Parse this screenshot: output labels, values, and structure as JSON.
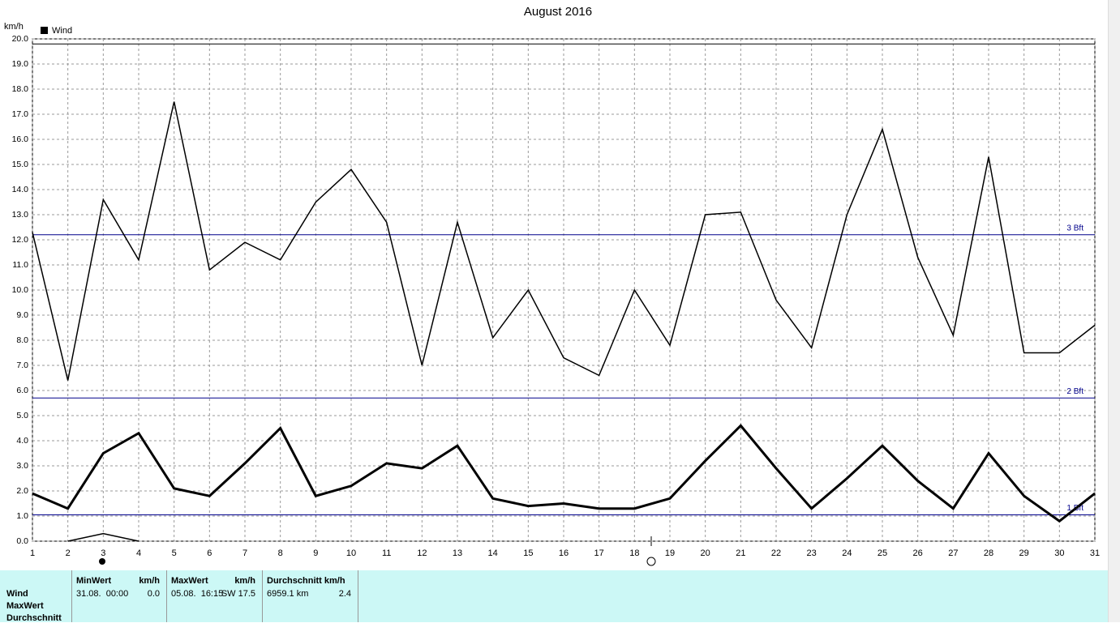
{
  "chart_data": {
    "type": "line",
    "title": "August 2016",
    "y_label": "km/h",
    "x": [
      1,
      2,
      3,
      4,
      5,
      6,
      7,
      8,
      9,
      10,
      11,
      12,
      13,
      14,
      15,
      16,
      17,
      18,
      19,
      20,
      21,
      22,
      23,
      24,
      25,
      26,
      27,
      28,
      29,
      30,
      31
    ],
    "series": [
      {
        "name": "Wind",
        "color": "#000000",
        "width": 1.5,
        "values": [
          12.3,
          6.4,
          13.6,
          11.2,
          17.5,
          10.8,
          11.9,
          11.2,
          13.5,
          14.8,
          12.7,
          7.0,
          12.7,
          8.1,
          10.0,
          7.3,
          6.6,
          10.0,
          7.8,
          13.0,
          13.1,
          9.6,
          7.7,
          13.0,
          16.4,
          11.3,
          8.2,
          15.3,
          7.5,
          7.5,
          8.6
        ]
      },
      {
        "color": "#000000",
        "width": 3,
        "values": [
          1.9,
          1.3,
          3.5,
          4.3,
          2.1,
          1.8,
          3.1,
          4.5,
          1.8,
          2.2,
          3.1,
          2.9,
          3.8,
          1.7,
          1.4,
          1.5,
          1.3,
          1.3,
          1.7,
          3.2,
          4.6,
          2.9,
          1.3,
          2.5,
          3.8,
          2.4,
          1.3,
          3.5,
          1.8,
          0.8,
          1.9
        ]
      },
      {
        "color": "#000000",
        "width": 1.5,
        "values": [
          null,
          0,
          0.3,
          0,
          null,
          null,
          null,
          null,
          null,
          null,
          null,
          null,
          null,
          null,
          null,
          null,
          null,
          null,
          null,
          null,
          null,
          null,
          null,
          null,
          null,
          null,
          null,
          null,
          null,
          null,
          null
        ]
      }
    ],
    "xlim": [
      1,
      31
    ],
    "xticks": [
      1,
      2,
      3,
      4,
      5,
      6,
      7,
      8,
      9,
      10,
      11,
      12,
      13,
      14,
      15,
      16,
      17,
      18,
      19,
      20,
      21,
      22,
      23,
      24,
      25,
      26,
      27,
      28,
      29,
      30,
      31
    ],
    "ylim": [
      0,
      20
    ],
    "yticks": [
      {
        "value": 0,
        "label": "0.0"
      },
      {
        "value": 1,
        "label": "1.0"
      },
      {
        "value": 2,
        "label": "2.0"
      },
      {
        "value": 3,
        "label": "3.0"
      },
      {
        "value": 4,
        "label": "4.0"
      },
      {
        "value": 5,
        "label": "5.0"
      },
      {
        "value": 6,
        "label": "6.0"
      },
      {
        "value": 7,
        "label": "7.0"
      },
      {
        "value": 8,
        "label": "8.0"
      },
      {
        "value": 9,
        "label": "9.0"
      },
      {
        "value": 10,
        "label": "10.0"
      },
      {
        "value": 11,
        "label": "11.0"
      },
      {
        "value": 12,
        "label": "12.0"
      },
      {
        "value": 13,
        "label": "13.0"
      },
      {
        "value": 14,
        "label": "14.0"
      },
      {
        "value": 15,
        "label": "15.0"
      },
      {
        "value": 16,
        "label": "16.0"
      },
      {
        "value": 17,
        "label": "17.0"
      },
      {
        "value": 18,
        "label": "18.0"
      },
      {
        "value": 19,
        "label": "19.0"
      },
      {
        "value": 20,
        "label": "20.0"
      }
    ],
    "grid": true,
    "reference_lines": [
      {
        "value": 19.8,
        "color": "#000000"
      },
      {
        "value": 12.2,
        "label": "3 Bft",
        "color": "#00008b"
      },
      {
        "value": 5.7,
        "label": "2 Bft",
        "color": "#00008b"
      },
      {
        "value": 1.05,
        "label": "1 Bft",
        "color": "#00008b"
      }
    ]
  },
  "table": {
    "row_labels": [
      "Wind",
      "MaxWert",
      "Durchschnitt"
    ],
    "columns": [
      {
        "header": "MinWert",
        "unit": "km/h",
        "cells": [
          "31.08.  00:00",
          "0.0"
        ]
      },
      {
        "header": "MaxWert",
        "unit": "km/h",
        "cells": [
          "05.08.  16:15",
          "SW 17.5"
        ]
      },
      {
        "header": "Durchschnitt km/h",
        "cells": [
          "6959.1 km",
          "2.4"
        ]
      }
    ]
  }
}
